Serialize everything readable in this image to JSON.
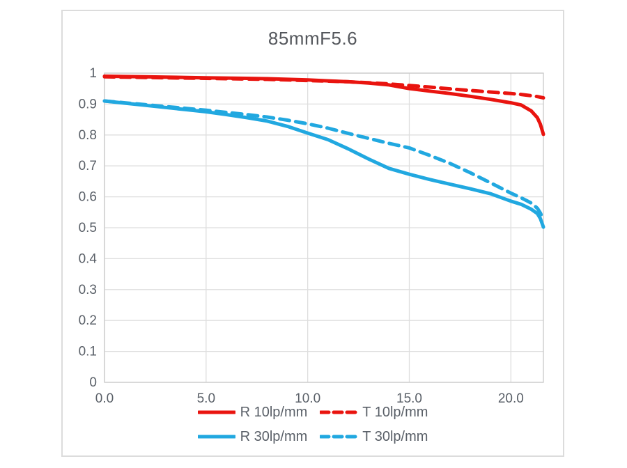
{
  "chart_data": {
    "type": "line",
    "title": "85mmF5.6",
    "xlabel": "",
    "ylabel": "",
    "xlim": [
      0,
      21.6
    ],
    "ylim": [
      0,
      1
    ],
    "x_ticks": [
      0,
      5,
      10,
      15,
      20
    ],
    "x_tick_labels": [
      "0.0",
      "5.0",
      "10.0",
      "15.0",
      "20.0"
    ],
    "y_ticks": [
      0,
      0.1,
      0.2,
      0.3,
      0.4,
      0.5,
      0.6,
      0.7,
      0.8,
      0.9,
      1
    ],
    "y_tick_labels": [
      "0",
      "0.1",
      "0.2",
      "0.3",
      "0.4",
      "0.5",
      "0.6",
      "0.7",
      "0.8",
      "0.9",
      "1"
    ],
    "grid": true,
    "legend_position": "bottom",
    "x": [
      0,
      1,
      2,
      3,
      4,
      5,
      6,
      7,
      8,
      9,
      10,
      11,
      12,
      13,
      14,
      15,
      16,
      17,
      18,
      19,
      20,
      20.5,
      21,
      21.3,
      21.45,
      21.6
    ],
    "series": [
      {
        "name": "R 10lp/mm",
        "color_key": "red",
        "style": "solid",
        "values": [
          0.99,
          0.989,
          0.988,
          0.987,
          0.986,
          0.985,
          0.984,
          0.983,
          0.982,
          0.98,
          0.978,
          0.975,
          0.972,
          0.968,
          0.962,
          0.95,
          0.942,
          0.934,
          0.925,
          0.915,
          0.904,
          0.897,
          0.878,
          0.856,
          0.835,
          0.802
        ]
      },
      {
        "name": "T 10lp/mm",
        "color_key": "red",
        "style": "dashed",
        "values": [
          0.988,
          0.987,
          0.986,
          0.985,
          0.984,
          0.983,
          0.982,
          0.981,
          0.98,
          0.978,
          0.976,
          0.974,
          0.972,
          0.969,
          0.965,
          0.96,
          0.955,
          0.949,
          0.944,
          0.939,
          0.934,
          0.931,
          0.927,
          0.924,
          0.922,
          0.92
        ]
      },
      {
        "name": "R 30lp/mm",
        "color_key": "cyan",
        "style": "solid",
        "values": [
          0.91,
          0.903,
          0.896,
          0.889,
          0.882,
          0.875,
          0.866,
          0.856,
          0.845,
          0.828,
          0.806,
          0.785,
          0.755,
          0.722,
          0.692,
          0.673,
          0.656,
          0.641,
          0.626,
          0.61,
          0.586,
          0.576,
          0.56,
          0.546,
          0.53,
          0.502
        ]
      },
      {
        "name": "T 30lp/mm",
        "color_key": "cyan",
        "style": "dashed",
        "values": [
          0.91,
          0.904,
          0.898,
          0.892,
          0.886,
          0.88,
          0.873,
          0.866,
          0.858,
          0.848,
          0.836,
          0.822,
          0.805,
          0.789,
          0.773,
          0.758,
          0.734,
          0.708,
          0.678,
          0.645,
          0.612,
          0.597,
          0.58,
          0.563,
          0.548,
          0.525
        ]
      }
    ]
  },
  "colors": {
    "red": "#e9140f",
    "cyan": "#21a8e0",
    "grid": "#dedede",
    "plot_border": "#c9c9c9",
    "axis_text": "#5a6068",
    "title_text": "#54575c",
    "frame_border": "#dcdcdc"
  }
}
